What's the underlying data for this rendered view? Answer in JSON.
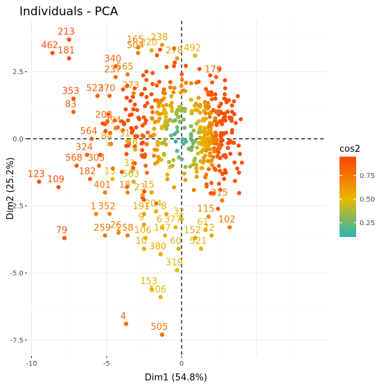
{
  "chart_data": {
    "type": "scatter",
    "title": "Individuals - PCA",
    "xlabel": "Dim1 (54.8%)",
    "ylabel": "Dim2 (25.2%)",
    "xlim": [
      -10.3,
      9.6
    ],
    "ylim": [
      -8.1,
      4.4
    ],
    "xticks": [
      -10,
      -5,
      0
    ],
    "xtick_labels": [
      "-10",
      "-5",
      "0"
    ],
    "yticks": [
      -7.5,
      -5.0,
      -2.5,
      0.0,
      2.5
    ],
    "ytick_labels": [
      "-7.5",
      "-5.0",
      "-2.5",
      "0.0",
      "2.5"
    ],
    "grid": true,
    "reference_lines": {
      "x": 0,
      "y": 0,
      "style": "dashed"
    },
    "color_variable": "cos2",
    "legend": {
      "title": "cos2",
      "placement": "right",
      "ticks": [
        0.25,
        0.5,
        0.75
      ],
      "tick_labels": [
        "0.25",
        "0.50",
        "0.75"
      ],
      "gradient": [
        {
          "value": 0.1,
          "color": "#2ab5b5"
        },
        {
          "value": 0.5,
          "color": "#e6b800"
        },
        {
          "value": 0.9,
          "color": "#fc4e07"
        }
      ]
    },
    "labeled_points": [
      {
        "label": "462",
        "x": -8.6,
        "y": 3.2,
        "cos2": 0.88
      },
      {
        "label": "213",
        "x": -7.5,
        "y": 3.7,
        "cos2": 0.9
      },
      {
        "label": "181",
        "x": -7.5,
        "y": 3.0,
        "cos2": 0.88
      },
      {
        "label": "353",
        "x": -7.2,
        "y": 1.5,
        "cos2": 0.87
      },
      {
        "label": "522",
        "x": -5.6,
        "y": 1.6,
        "cos2": 0.82
      },
      {
        "label": "83",
        "x": -7.2,
        "y": 1.0,
        "cos2": 0.85
      },
      {
        "label": "203",
        "x": -5.0,
        "y": 0.6,
        "cos2": 0.8
      },
      {
        "label": "370",
        "x": -4.8,
        "y": 1.6,
        "cos2": 0.8
      },
      {
        "label": "340",
        "x": -4.4,
        "y": 2.7,
        "cos2": 0.82
      },
      {
        "label": "237",
        "x": -4.4,
        "y": 2.3,
        "cos2": 0.8
      },
      {
        "label": "165",
        "x": -2.9,
        "y": 3.4,
        "cos2": 0.72
      },
      {
        "label": "504",
        "x": -2.9,
        "y": 3.2,
        "cos2": 0.7
      },
      {
        "label": "220",
        "x": -2.0,
        "y": 3.3,
        "cos2": 0.55
      },
      {
        "label": "238",
        "x": -1.3,
        "y": 3.5,
        "cos2": 0.6
      },
      {
        "label": "278",
        "x": -0.3,
        "y": 3.0,
        "cos2": 0.62
      },
      {
        "label": "492",
        "x": 0.9,
        "y": 3.1,
        "cos2": 0.5
      },
      {
        "label": "179",
        "x": 2.3,
        "y": 2.3,
        "cos2": 0.8
      },
      {
        "label": "565",
        "x": -3.6,
        "y": 2.4,
        "cos2": 0.72
      },
      {
        "label": "273",
        "x": -3.2,
        "y": 1.7,
        "cos2": 0.68
      },
      {
        "label": "394",
        "x": -4.4,
        "y": 0.4,
        "cos2": 0.7
      },
      {
        "label": "564",
        "x": -6.0,
        "y": 0.0,
        "cos2": 0.82
      },
      {
        "label": "324",
        "x": -6.3,
        "y": -0.6,
        "cos2": 0.82
      },
      {
        "label": "84",
        "x": -4.8,
        "y": -0.2,
        "cos2": 0.6
      },
      {
        "label": "31",
        "x": -3.6,
        "y": -0.1,
        "cos2": 0.55
      },
      {
        "label": "78",
        "x": -3.1,
        "y": -0.4,
        "cos2": 0.52
      },
      {
        "label": "568",
        "x": -7.0,
        "y": -1.0,
        "cos2": 0.85
      },
      {
        "label": "303",
        "x": -5.5,
        "y": -1.0,
        "cos2": 0.78
      },
      {
        "label": "33",
        "x": -3.3,
        "y": -1.2,
        "cos2": 0.5
      },
      {
        "label": "123",
        "x": -9.5,
        "y": -1.6,
        "cos2": 0.9
      },
      {
        "label": "182",
        "x": -6.1,
        "y": -1.5,
        "cos2": 0.82
      },
      {
        "label": "13",
        "x": -4.6,
        "y": -1.5,
        "cos2": 0.5
      },
      {
        "label": "563",
        "x": -3.2,
        "y": -1.6,
        "cos2": 0.45
      },
      {
        "label": "109",
        "x": -8.2,
        "y": -1.8,
        "cos2": 0.88
      },
      {
        "label": "401",
        "x": -5.1,
        "y": -2.0,
        "cos2": 0.75
      },
      {
        "label": "18",
        "x": -3.6,
        "y": -2.0,
        "cos2": 0.7
      },
      {
        "label": "23",
        "x": -2.6,
        "y": -2.1,
        "cos2": 0.6
      },
      {
        "label": "15",
        "x": -2.0,
        "y": -2.0,
        "cos2": 0.55
      },
      {
        "label": "1",
        "x": -5.7,
        "y": -2.8,
        "cos2": 0.7
      },
      {
        "label": "352",
        "x": -4.8,
        "y": -2.8,
        "cos2": 0.7
      },
      {
        "label": "191",
        "x": -2.5,
        "y": -2.8,
        "cos2": 0.6
      },
      {
        "label": "204",
        "x": -1.7,
        "y": -2.7,
        "cos2": 0.55
      },
      {
        "label": "8",
        "x": -1.0,
        "y": -2.8,
        "cos2": 0.55
      },
      {
        "label": "32",
        "x": 0.0,
        "y": -3.0,
        "cos2": 0.5
      },
      {
        "label": "315",
        "x": 2.7,
        "y": -2.3,
        "cos2": 0.72
      },
      {
        "label": "115",
        "x": 1.8,
        "y": -2.9,
        "cos2": 0.7
      },
      {
        "label": "102",
        "x": 3.2,
        "y": -3.3,
        "cos2": 0.75
      },
      {
        "label": "79",
        "x": -7.8,
        "y": -3.7,
        "cos2": 0.87
      },
      {
        "label": "259",
        "x": -5.1,
        "y": -3.6,
        "cos2": 0.75
      },
      {
        "label": "26",
        "x": -4.2,
        "y": -3.5,
        "cos2": 0.7
      },
      {
        "label": "9",
        "x": -2.5,
        "y": -3.2,
        "cos2": 0.6
      },
      {
        "label": "6",
        "x": -1.3,
        "y": -3.3,
        "cos2": 0.55
      },
      {
        "label": "377",
        "x": -0.4,
        "y": -3.3,
        "cos2": 0.5
      },
      {
        "label": "61",
        "x": 1.6,
        "y": -3.4,
        "cos2": 0.5
      },
      {
        "label": "152",
        "x": 0.9,
        "y": -3.7,
        "cos2": 0.6
      },
      {
        "label": "72",
        "x": 2.0,
        "y": -3.6,
        "cos2": 0.55
      },
      {
        "label": "258",
        "x": -3.6,
        "y": -3.6,
        "cos2": 0.7
      },
      {
        "label": "106",
        "x": -2.4,
        "y": -3.7,
        "cos2": 0.55
      },
      {
        "label": "147",
        "x": -1.1,
        "y": -3.6,
        "cos2": 0.5
      },
      {
        "label": "10",
        "x": -2.5,
        "y": -4.1,
        "cos2": 0.55
      },
      {
        "label": "380",
        "x": -1.4,
        "y": -4.3,
        "cos2": 0.55
      },
      {
        "label": "60",
        "x": -0.2,
        "y": -4.1,
        "cos2": 0.45
      },
      {
        "label": "521",
        "x": 1.3,
        "y": -4.1,
        "cos2": 0.5
      },
      {
        "label": "319",
        "x": -0.3,
        "y": -4.9,
        "cos2": 0.5
      },
      {
        "label": "153",
        "x": -2.0,
        "y": -5.6,
        "cos2": 0.5
      },
      {
        "label": "506",
        "x": -1.4,
        "y": -5.9,
        "cos2": 0.5
      },
      {
        "label": "4",
        "x": -3.7,
        "y": -6.9,
        "cos2": 0.8
      },
      {
        "label": "505",
        "x": -1.3,
        "y": -7.3,
        "cos2": 0.75
      }
    ]
  }
}
